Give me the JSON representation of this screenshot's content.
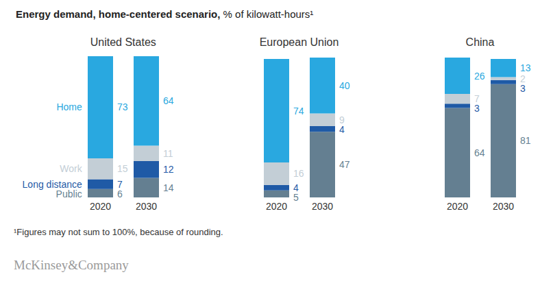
{
  "title": "Energy demand, home-centered scenario,",
  "subtitle": "% of kilowatt-hours¹",
  "footnote": "¹Figures may not sum to 100%, because of rounding.",
  "source": "McKinsey&Company",
  "chart_data": [
    {
      "type": "bar",
      "title": "United States",
      "stacked": true,
      "data_labels": true,
      "tick_labels": "x",
      "legend": "left",
      "categories": [
        "2020",
        "2030"
      ],
      "ylim": [
        0,
        101
      ],
      "series": [
        {
          "name": "Home",
          "color": "#29a8e0",
          "values": [
            73,
            64
          ]
        },
        {
          "name": "Work",
          "color": "#c3ced6",
          "values": [
            15,
            11
          ]
        },
        {
          "name": "Long distance",
          "color": "#1f5aa6",
          "values": [
            7,
            12
          ]
        },
        {
          "name": "Public",
          "color": "#647f91",
          "values": [
            6,
            14
          ]
        }
      ]
    },
    {
      "type": "bar",
      "title": "European Union",
      "stacked": true,
      "data_labels": true,
      "tick_labels": "x",
      "categories": [
        "2020",
        "2030"
      ],
      "ylim": [
        0,
        101
      ],
      "series": [
        {
          "name": "Home",
          "color": "#29a8e0",
          "values": [
            74,
            40
          ]
        },
        {
          "name": "Work",
          "color": "#c3ced6",
          "values": [
            16,
            9
          ]
        },
        {
          "name": "Long distance",
          "color": "#1f5aa6",
          "values": [
            4,
            4
          ]
        },
        {
          "name": "Public",
          "color": "#647f91",
          "values": [
            5,
            47
          ]
        }
      ]
    },
    {
      "type": "bar",
      "title": "China",
      "stacked": true,
      "data_labels": true,
      "tick_labels": "x",
      "categories": [
        "2020",
        "2030"
      ],
      "ylim": [
        0,
        101
      ],
      "series": [
        {
          "name": "Home",
          "color": "#29a8e0",
          "values": [
            26,
            13
          ]
        },
        {
          "name": "Work",
          "color": "#c3ced6",
          "values": [
            7,
            2
          ]
        },
        {
          "name": "Long distance",
          "color": "#1f5aa6",
          "values": [
            3,
            3
          ]
        },
        {
          "name": "Public",
          "color": "#647f91",
          "values": [
            64,
            81
          ]
        }
      ]
    }
  ]
}
